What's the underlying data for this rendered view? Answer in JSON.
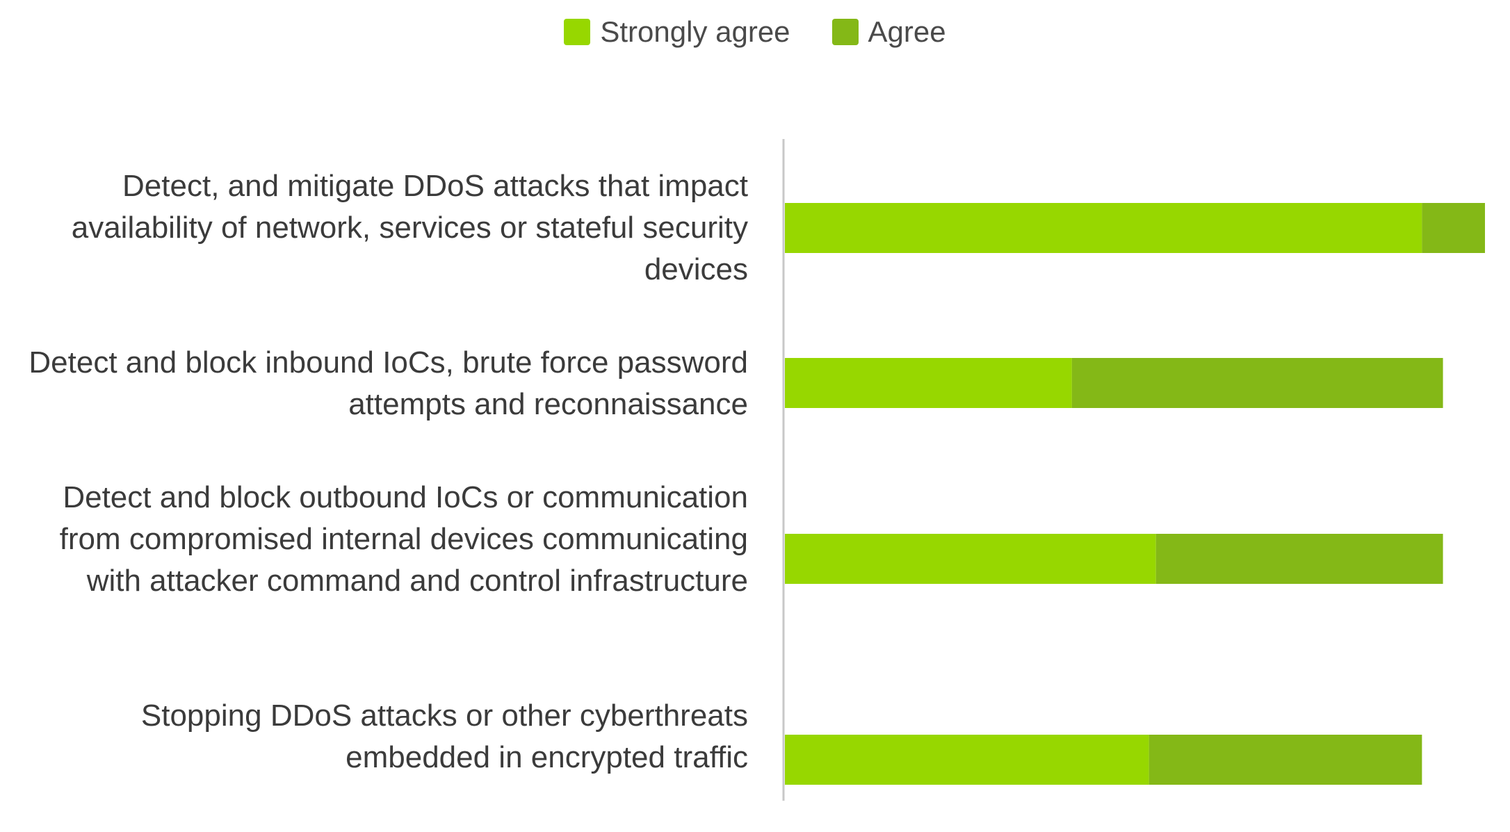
{
  "chart_data": {
    "type": "bar",
    "orientation": "horizontal",
    "stacked": true,
    "categories": [
      "Detect, and mitigate DDoS attacks that impact availability of network, services or stateful security devices",
      "Detect and block inbound IoCs, brute force password attempts and reconnaissance",
      "Detect and block outbound IoCs or communication from compromised internal devices communicating with attacker command and control infrastructure",
      "Stopping DDoS attacks or other cyberthreats embedded in encrypted traffic"
    ],
    "series": [
      {
        "name": "Strongly agree",
        "color": "#97d700",
        "values": [
          91,
          41,
          53,
          52
        ]
      },
      {
        "name": "Agree",
        "color": "#84b817",
        "values": [
          9,
          53,
          41,
          39
        ]
      }
    ],
    "xlim": [
      0,
      100
    ],
    "legend": "top-center",
    "grid": false
  }
}
